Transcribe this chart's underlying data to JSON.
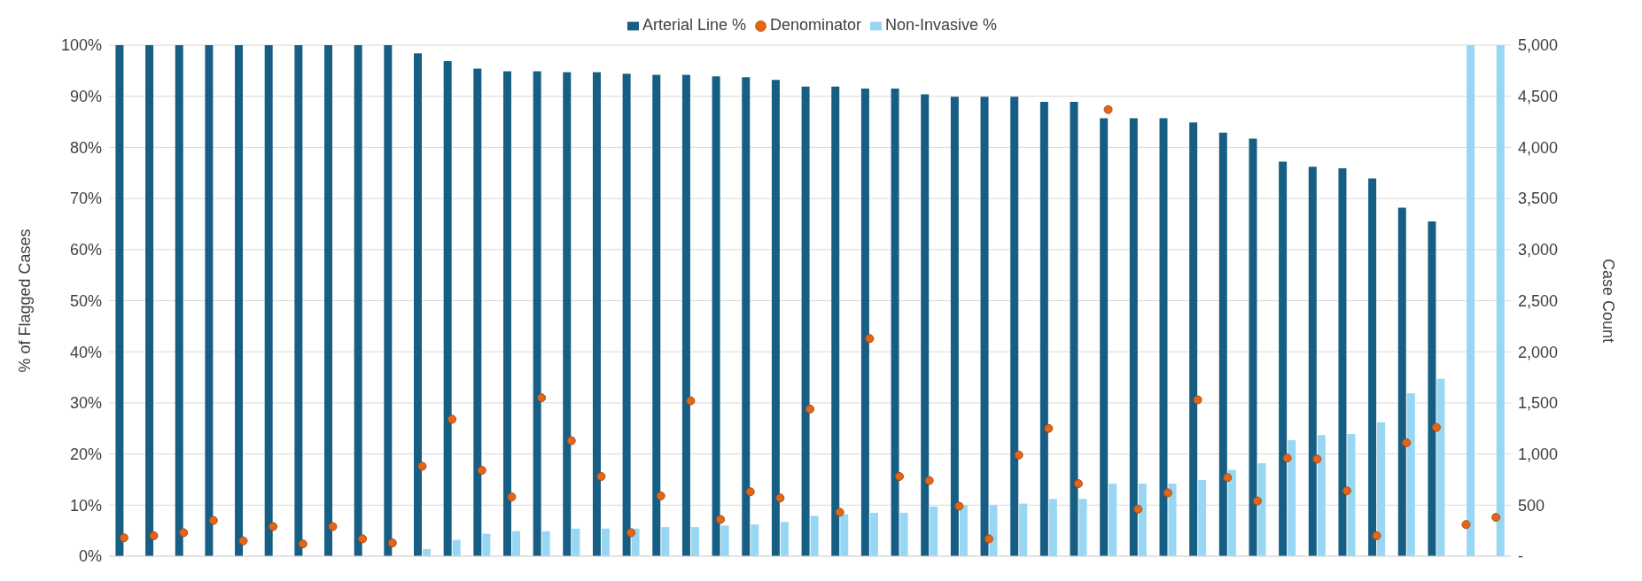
{
  "chart_data": {
    "type": "bar",
    "categories": [
      null,
      null,
      null,
      null,
      null,
      null,
      null,
      null,
      null,
      null,
      null,
      null,
      null,
      null,
      null,
      null,
      null,
      null,
      null,
      null,
      null,
      null,
      null,
      null,
      null,
      null,
      null,
      null,
      null,
      null,
      null,
      null,
      null,
      null,
      null,
      null,
      null,
      null,
      null,
      null,
      null,
      null,
      null,
      null,
      null,
      null,
      null
    ],
    "series": [
      {
        "name": "Arterial Line %",
        "color": "#165e83",
        "values": [
          100,
          100,
          100,
          100,
          100,
          100,
          100,
          100,
          100,
          100,
          98.4,
          96.9,
          95.4,
          94.9,
          94.9,
          94.7,
          94.7,
          94.4,
          94.2,
          94.2,
          93.9,
          93.7,
          93.2,
          91.9,
          91.9,
          91.5,
          91.5,
          90.4,
          89.9,
          89.9,
          89.9,
          88.9,
          88.9,
          85.7,
          85.7,
          85.7,
          84.9,
          82.9,
          81.7,
          77.2,
          76.2,
          75.9,
          73.9,
          68.2,
          65.5,
          null,
          null
        ]
      },
      {
        "name": "Non-Invasive %",
        "color": "#97d7f3",
        "values": [
          0,
          0,
          0,
          0,
          0,
          0,
          0,
          0,
          0,
          0,
          1.4,
          3.2,
          4.4,
          4.9,
          4.9,
          5.4,
          5.4,
          5.4,
          5.7,
          5.7,
          6.0,
          6.2,
          6.7,
          7.9,
          8.2,
          8.5,
          8.5,
          9.7,
          10.0,
          10.0,
          10.3,
          11.2,
          11.2,
          14.2,
          14.2,
          14.2,
          14.9,
          16.9,
          18.2,
          22.7,
          23.7,
          23.9,
          26.2,
          31.9,
          34.7,
          100,
          100
        ]
      },
      {
        "name": "Denominator",
        "type": "scatter",
        "axis": "y2",
        "color": "#e0661c",
        "values": [
          180,
          200,
          230,
          350,
          150,
          290,
          120,
          290,
          170,
          130,
          880,
          1340,
          840,
          580,
          1550,
          1130,
          780,
          230,
          590,
          1520,
          360,
          630,
          570,
          1440,
          430,
          2130,
          780,
          740,
          490,
          170,
          990,
          1250,
          710,
          4370,
          460,
          620,
          1530,
          770,
          540,
          960,
          950,
          640,
          200,
          1110,
          1260,
          310,
          380
        ]
      }
    ],
    "ylabel": "% of Flagged Cases",
    "y2label": "Case Count",
    "ylim": [
      0,
      100
    ],
    "yticks": [
      {
        "value": 0,
        "label": "0%"
      },
      {
        "value": 10,
        "label": "10%"
      },
      {
        "value": 20,
        "label": "20%"
      },
      {
        "value": 30,
        "label": "30%"
      },
      {
        "value": 40,
        "label": "40%"
      },
      {
        "value": 50,
        "label": "50%"
      },
      {
        "value": 60,
        "label": "60%"
      },
      {
        "value": 70,
        "label": "70%"
      },
      {
        "value": 80,
        "label": "80%"
      },
      {
        "value": 90,
        "label": "90%"
      },
      {
        "value": 100,
        "label": "100%"
      }
    ],
    "y2lim": [
      0,
      5000
    ],
    "y2ticks": [
      {
        "value": 0,
        "label": "-"
      },
      500,
      {
        "value": 1000,
        "label": "1,000"
      },
      {
        "value": 1500,
        "label": "1,500"
      },
      {
        "value": 2000,
        "label": "2,000"
      },
      {
        "value": 2500,
        "label": "2,500"
      },
      {
        "value": 3000,
        "label": "3,000"
      },
      {
        "value": 3500,
        "label": "3,500"
      },
      {
        "value": 4000,
        "label": "4,000"
      },
      {
        "value": 4500,
        "label": "4,500"
      },
      {
        "value": 5000,
        "label": "5,000"
      }
    ],
    "grid": "y",
    "legend": "top",
    "marker": "circle",
    "tick_labels": "y"
  }
}
